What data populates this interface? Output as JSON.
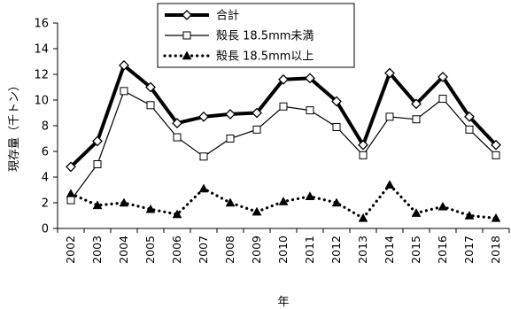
{
  "chart_data": {
    "type": "line",
    "title": "",
    "xlabel": "年",
    "ylabel": "現存量（千トン）",
    "ylim": [
      0,
      16
    ],
    "yticks": [
      0,
      2,
      4,
      6,
      8,
      10,
      12,
      14,
      16
    ],
    "grid": false,
    "legend_position": "top-center",
    "categories": [
      "2002",
      "2003",
      "2004",
      "2005",
      "2006",
      "2007",
      "2008",
      "2009",
      "2010",
      "2011",
      "2012",
      "2013",
      "2014",
      "2015",
      "2016",
      "2017",
      "2018"
    ],
    "series": [
      {
        "name": "合計",
        "marker": "diamond",
        "line": "bold",
        "color": "#000000",
        "values": [
          4.8,
          6.8,
          12.7,
          11.0,
          8.2,
          8.7,
          8.9,
          9.0,
          11.6,
          11.7,
          9.9,
          6.5,
          12.1,
          9.7,
          11.8,
          8.7,
          6.5
        ]
      },
      {
        "name": "殻長 18.5mm未満",
        "marker": "square-open",
        "line": "thin",
        "color": "#000000",
        "values": [
          2.2,
          5.0,
          10.7,
          9.6,
          7.1,
          5.6,
          7.0,
          7.7,
          9.5,
          9.2,
          7.9,
          5.7,
          8.7,
          8.5,
          10.1,
          7.7,
          5.7
        ]
      },
      {
        "name": "殻長 18.5mm以上",
        "marker": "triangle",
        "line": "dotted",
        "color": "#000000",
        "values": [
          2.7,
          1.8,
          2.0,
          1.5,
          1.1,
          3.1,
          2.0,
          1.3,
          2.1,
          2.5,
          2.0,
          0.8,
          3.4,
          1.2,
          1.7,
          1.0,
          0.8
        ]
      }
    ]
  }
}
